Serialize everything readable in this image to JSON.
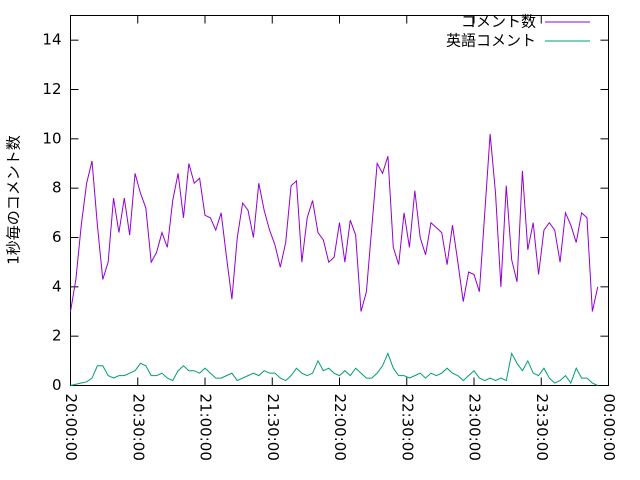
{
  "chart_data": {
    "type": "line",
    "ylabel": "1秒毎のコメント数",
    "x": [
      "20:00:00",
      "20:02:24",
      "20:04:48",
      "20:07:12",
      "20:09:36",
      "20:12:00",
      "20:14:24",
      "20:16:48",
      "20:19:12",
      "20:21:36",
      "20:24:00",
      "20:26:24",
      "20:28:48",
      "20:31:12",
      "20:33:36",
      "20:36:00",
      "20:38:24",
      "20:40:48",
      "20:43:12",
      "20:45:36",
      "20:48:00",
      "20:50:24",
      "20:52:48",
      "20:55:12",
      "20:57:36",
      "21:00:00",
      "21:02:24",
      "21:04:48",
      "21:07:12",
      "21:09:36",
      "21:12:00",
      "21:14:24",
      "21:16:48",
      "21:19:12",
      "21:21:36",
      "21:24:00",
      "21:26:24",
      "21:28:48",
      "21:31:12",
      "21:33:36",
      "21:36:00",
      "21:38:24",
      "21:40:48",
      "21:43:12",
      "21:45:36",
      "21:48:00",
      "21:50:24",
      "21:52:48",
      "21:55:12",
      "21:57:36",
      "22:00:00",
      "22:02:24",
      "22:04:48",
      "22:07:12",
      "22:09:36",
      "22:12:00",
      "22:14:24",
      "22:16:48",
      "22:19:12",
      "22:21:36",
      "22:24:00",
      "22:26:24",
      "22:28:48",
      "22:31:12",
      "22:33:36",
      "22:36:00",
      "22:38:24",
      "22:40:48",
      "22:43:12",
      "22:45:36",
      "22:48:00",
      "22:50:24",
      "22:52:48",
      "22:55:12",
      "22:57:36",
      "23:00:00",
      "23:02:24",
      "23:04:48",
      "23:07:12",
      "23:09:36",
      "23:12:00",
      "23:14:24",
      "23:16:48",
      "23:19:12",
      "23:21:36",
      "23:24:00",
      "23:26:24",
      "23:28:48",
      "23:31:12",
      "23:33:36",
      "23:36:00",
      "23:38:24",
      "23:40:48",
      "23:43:12",
      "23:45:36",
      "23:48:00",
      "23:50:24",
      "23:52:48",
      "23:55:12"
    ],
    "series": [
      {
        "name": "コメント数",
        "color": "#9400d3",
        "values": [
          3.0,
          4.3,
          6.5,
          8.2,
          9.1,
          6.5,
          4.3,
          5.0,
          7.6,
          6.2,
          7.6,
          6.1,
          8.6,
          7.8,
          7.2,
          5.0,
          5.4,
          6.2,
          5.6,
          7.5,
          8.6,
          6.8,
          9.0,
          8.2,
          8.4,
          6.9,
          6.8,
          6.3,
          7.0,
          5.2,
          3.5,
          6.0,
          7.4,
          7.1,
          6.0,
          8.2,
          7.1,
          6.3,
          5.7,
          4.8,
          5.8,
          8.1,
          8.3,
          5.0,
          6.8,
          7.5,
          6.2,
          5.9,
          5.0,
          5.2,
          6.6,
          5.0,
          6.7,
          6.1,
          3.0,
          3.8,
          6.4,
          9.0,
          8.6,
          9.3,
          5.6,
          4.9,
          7.0,
          5.6,
          7.9,
          6.0,
          5.3,
          6.6,
          6.4,
          6.2,
          4.9,
          6.5,
          5.0,
          3.4,
          4.6,
          4.5,
          3.8,
          7.0,
          10.2,
          7.8,
          4.0,
          8.1,
          5.1,
          4.2,
          8.7,
          5.5,
          6.6,
          4.5,
          6.3,
          6.6,
          6.3,
          5.0,
          7.0,
          6.5,
          5.8,
          7.0,
          6.8,
          3.0,
          4.0
        ]
      },
      {
        "name": "英語コメント",
        "color": "#009e73",
        "values": [
          0,
          0.05,
          0.1,
          0.15,
          0.3,
          0.8,
          0.8,
          0.4,
          0.3,
          0.4,
          0.4,
          0.5,
          0.6,
          0.9,
          0.8,
          0.4,
          0.4,
          0.5,
          0.3,
          0.2,
          0.6,
          0.8,
          0.6,
          0.6,
          0.5,
          0.7,
          0.5,
          0.3,
          0.3,
          0.4,
          0.5,
          0.2,
          0.3,
          0.4,
          0.5,
          0.4,
          0.6,
          0.5,
          0.5,
          0.3,
          0.2,
          0.4,
          0.7,
          0.5,
          0.4,
          0.5,
          1.0,
          0.6,
          0.7,
          0.5,
          0.4,
          0.6,
          0.4,
          0.7,
          0.5,
          0.3,
          0.3,
          0.5,
          0.8,
          1.3,
          0.7,
          0.4,
          0.4,
          0.3,
          0.4,
          0.5,
          0.3,
          0.5,
          0.4,
          0.5,
          0.7,
          0.5,
          0.4,
          0.2,
          0.4,
          0.6,
          0.3,
          0.2,
          0.3,
          0.2,
          0.3,
          0.2,
          1.3,
          0.9,
          0.6,
          1.0,
          0.5,
          0.4,
          0.7,
          0.3,
          0.1,
          0.2,
          0.4,
          0.1,
          0.7,
          0.3,
          0.3,
          0.1,
          0
        ]
      }
    ],
    "xlim": [
      "20:00:00",
      "00:00:00"
    ],
    "xticks": [
      "20:00:00",
      "20:30:00",
      "21:00:00",
      "21:30:00",
      "22:00:00",
      "22:30:00",
      "23:00:00",
      "23:30:00",
      "00:00:00"
    ],
    "ylim": [
      0,
      15
    ],
    "yticks": [
      0,
      2,
      4,
      6,
      8,
      10,
      12,
      14
    ],
    "grid": false,
    "legend": "top-right"
  }
}
